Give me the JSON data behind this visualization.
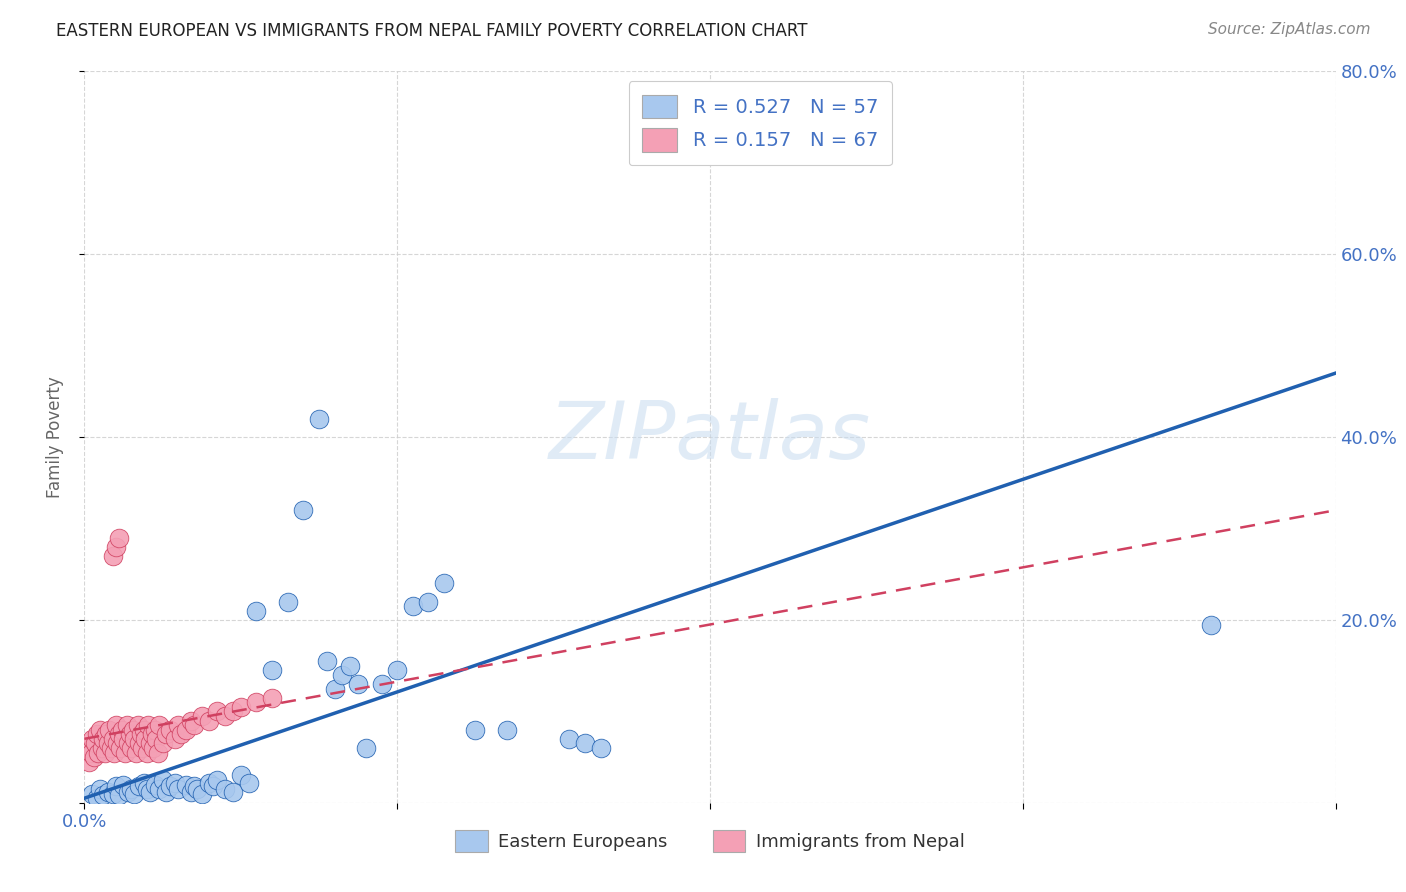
{
  "title": "EASTERN EUROPEAN VS IMMIGRANTS FROM NEPAL FAMILY POVERTY CORRELATION CHART",
  "source": "Source: ZipAtlas.com",
  "ylabel": "Family Poverty",
  "x_min": 0.0,
  "x_max": 0.8,
  "y_min": 0.0,
  "y_max": 0.8,
  "x_ticks": [
    0.0,
    0.2,
    0.4,
    0.6,
    0.8
  ],
  "y_ticks": [
    0.0,
    0.2,
    0.4,
    0.6,
    0.8
  ],
  "x_tick_labels": [
    "0.0%",
    "",
    "",
    "",
    ""
  ],
  "y_tick_labels_right": [
    "",
    "20.0%",
    "40.0%",
    "60.0%",
    "80.0%"
  ],
  "blue_color": "#A8C8EE",
  "pink_color": "#F4A0B5",
  "blue_line_color": "#2060B0",
  "pink_line_color": "#D04060",
  "legend_blue_label": "R = 0.527   N = 57",
  "legend_pink_label": "R = 0.157   N = 67",
  "legend_bottom_blue": "Eastern Europeans",
  "legend_bottom_pink": "Immigrants from Nepal",
  "watermark": "ZIPatlas",
  "blue_R": 0.527,
  "blue_N": 57,
  "pink_R": 0.157,
  "pink_N": 67,
  "blue_line_x0": 0.0,
  "blue_line_y0": 0.005,
  "blue_line_x1": 0.8,
  "blue_line_y1": 0.47,
  "pink_line_x0": 0.0,
  "pink_line_y0": 0.07,
  "pink_line_x1": 0.8,
  "pink_line_y1": 0.32,
  "blue_scatter_x": [
    0.005,
    0.008,
    0.01,
    0.012,
    0.015,
    0.018,
    0.02,
    0.022,
    0.025,
    0.028,
    0.03,
    0.032,
    0.035,
    0.038,
    0.04,
    0.042,
    0.045,
    0.048,
    0.05,
    0.052,
    0.055,
    0.058,
    0.06,
    0.065,
    0.068,
    0.07,
    0.072,
    0.075,
    0.08,
    0.082,
    0.085,
    0.09,
    0.095,
    0.1,
    0.105,
    0.11,
    0.12,
    0.13,
    0.14,
    0.15,
    0.155,
    0.16,
    0.165,
    0.17,
    0.175,
    0.18,
    0.19,
    0.2,
    0.21,
    0.22,
    0.23,
    0.25,
    0.27,
    0.31,
    0.32,
    0.33,
    0.72
  ],
  "blue_scatter_y": [
    0.01,
    0.005,
    0.015,
    0.008,
    0.012,
    0.01,
    0.018,
    0.008,
    0.02,
    0.012,
    0.015,
    0.01,
    0.018,
    0.022,
    0.015,
    0.012,
    0.02,
    0.015,
    0.025,
    0.012,
    0.018,
    0.022,
    0.015,
    0.02,
    0.012,
    0.018,
    0.015,
    0.01,
    0.022,
    0.018,
    0.025,
    0.015,
    0.012,
    0.03,
    0.022,
    0.21,
    0.145,
    0.22,
    0.32,
    0.42,
    0.155,
    0.125,
    0.14,
    0.15,
    0.13,
    0.06,
    0.13,
    0.145,
    0.215,
    0.22,
    0.24,
    0.08,
    0.08,
    0.07,
    0.065,
    0.06,
    0.195
  ],
  "pink_scatter_x": [
    0.002,
    0.003,
    0.004,
    0.005,
    0.006,
    0.007,
    0.008,
    0.009,
    0.01,
    0.011,
    0.012,
    0.013,
    0.014,
    0.015,
    0.016,
    0.017,
    0.018,
    0.019,
    0.02,
    0.021,
    0.022,
    0.023,
    0.024,
    0.025,
    0.026,
    0.027,
    0.028,
    0.029,
    0.03,
    0.031,
    0.032,
    0.033,
    0.034,
    0.035,
    0.036,
    0.037,
    0.038,
    0.039,
    0.04,
    0.041,
    0.042,
    0.043,
    0.044,
    0.045,
    0.046,
    0.047,
    0.048,
    0.05,
    0.052,
    0.055,
    0.058,
    0.06,
    0.062,
    0.065,
    0.068,
    0.07,
    0.075,
    0.08,
    0.085,
    0.09,
    0.095,
    0.1,
    0.11,
    0.12,
    0.018,
    0.02,
    0.022
  ],
  "pink_scatter_y": [
    0.06,
    0.045,
    0.055,
    0.07,
    0.05,
    0.065,
    0.075,
    0.055,
    0.08,
    0.06,
    0.07,
    0.055,
    0.075,
    0.065,
    0.08,
    0.06,
    0.07,
    0.055,
    0.085,
    0.065,
    0.075,
    0.06,
    0.08,
    0.07,
    0.055,
    0.085,
    0.065,
    0.075,
    0.06,
    0.08,
    0.07,
    0.055,
    0.085,
    0.065,
    0.075,
    0.06,
    0.08,
    0.07,
    0.055,
    0.085,
    0.065,
    0.075,
    0.06,
    0.08,
    0.07,
    0.055,
    0.085,
    0.065,
    0.075,
    0.08,
    0.07,
    0.085,
    0.075,
    0.08,
    0.09,
    0.085,
    0.095,
    0.09,
    0.1,
    0.095,
    0.1,
    0.105,
    0.11,
    0.115,
    0.27,
    0.28,
    0.29
  ]
}
